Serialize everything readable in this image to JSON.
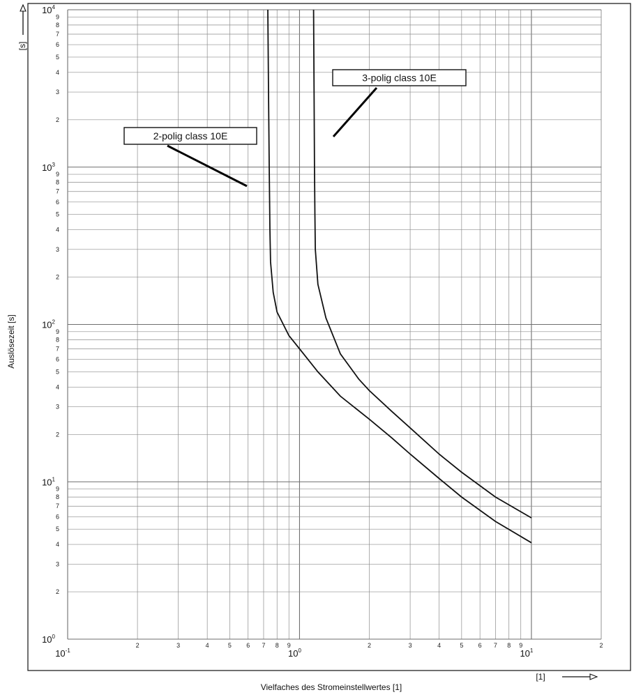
{
  "chart_data": {
    "type": "line",
    "xscale": "log",
    "yscale": "log",
    "xlim": [
      0.1,
      20
    ],
    "ylim": [
      1,
      10000
    ],
    "grid": true,
    "xlabel": "Vielfaches des Stromeinstellwertes [1]",
    "ylabel": "Auslösezeit [s]",
    "x_unit": "[1]",
    "y_unit": "[s]",
    "x_decade_labels": [
      {
        "base": "10",
        "exp": "-1",
        "value": 0.1
      },
      {
        "base": "10",
        "exp": "0",
        "value": 1
      },
      {
        "base": "10",
        "exp": "1",
        "value": 10
      }
    ],
    "y_decade_labels": [
      {
        "base": "10",
        "exp": "0",
        "value": 1
      },
      {
        "base": "10",
        "exp": "1",
        "value": 10
      },
      {
        "base": "10",
        "exp": "2",
        "value": 100
      },
      {
        "base": "10",
        "exp": "3",
        "value": 1000
      },
      {
        "base": "10",
        "exp": "4",
        "value": 10000
      }
    ],
    "x_minor_ticks": [
      {
        "label": "2",
        "value": 0.2
      },
      {
        "label": "3",
        "value": 0.3
      },
      {
        "label": "4",
        "value": 0.4
      },
      {
        "label": "5",
        "value": 0.5
      },
      {
        "label": "6",
        "value": 0.6
      },
      {
        "label": "7",
        "value": 0.7
      },
      {
        "label": "8",
        "value": 0.8
      },
      {
        "label": "9",
        "value": 0.9
      },
      {
        "label": "2",
        "value": 2
      },
      {
        "label": "3",
        "value": 3
      },
      {
        "label": "4",
        "value": 4
      },
      {
        "label": "5",
        "value": 5
      },
      {
        "label": "6",
        "value": 6
      },
      {
        "label": "7",
        "value": 7
      },
      {
        "label": "8",
        "value": 8
      },
      {
        "label": "9",
        "value": 9
      },
      {
        "label": "2",
        "value": 20
      }
    ],
    "y_minor_ticks": [
      "2",
      "3",
      "4",
      "5",
      "6",
      "7",
      "8",
      "9"
    ],
    "series": [
      {
        "name": "2-polig class 10E",
        "x": [
          0.73,
          0.735,
          0.74,
          0.745,
          0.75,
          0.77,
          0.8,
          0.9,
          1.0,
          1.2,
          1.5,
          2.0,
          2.5,
          3.0,
          4.0,
          5.0,
          7.0,
          10.0
        ],
        "y": [
          10000,
          3000,
          1000,
          400,
          250,
          160,
          120,
          85,
          70,
          50,
          35,
          25,
          19,
          15,
          10.5,
          8,
          5.6,
          4.1
        ]
      },
      {
        "name": "3-polig class 10E",
        "x": [
          1.15,
          1.155,
          1.16,
          1.165,
          1.17,
          1.2,
          1.3,
          1.5,
          1.8,
          2.0,
          2.5,
          3.0,
          4.0,
          5.0,
          7.0,
          10.0
        ],
        "y": [
          10000,
          3000,
          1000,
          500,
          300,
          180,
          110,
          65,
          45,
          38,
          28,
          22,
          15,
          11.5,
          8,
          5.9
        ]
      }
    ],
    "annotations": [
      {
        "text": "2-polig class 10E",
        "series": 0
      },
      {
        "text": "3-polig class 10E",
        "series": 1
      }
    ]
  }
}
